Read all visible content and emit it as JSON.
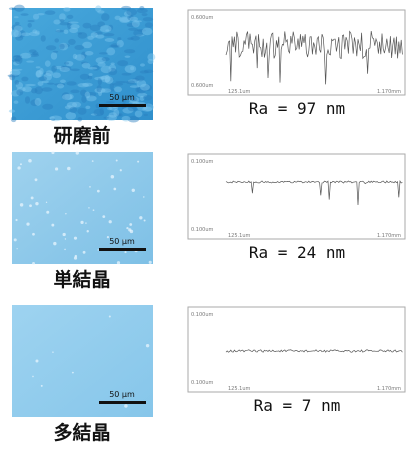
{
  "rows": [
    {
      "label": "研磨前",
      "ra": "Ra = 97 nm",
      "scale_bar": "50 μm",
      "plot": {
        "y_top": "0.600um",
        "y_bottom": "0.600um",
        "x_left": "125.1um",
        "x_right": "1.170mm"
      }
    },
    {
      "label": "単結晶",
      "ra": "Ra = 24 nm",
      "scale_bar": "50 μm",
      "plot": {
        "y_top": "0.100um",
        "y_bottom": "0.100um",
        "x_left": "125.1um",
        "x_right": "1.170mm"
      }
    },
    {
      "label": "多結晶",
      "ra": "Ra = 7 nm",
      "scale_bar": "50 μm",
      "plot": {
        "y_top": "0.100um",
        "y_bottom": "0.100um",
        "x_left": "125.1um",
        "x_right": "1.170mm"
      }
    }
  ]
}
